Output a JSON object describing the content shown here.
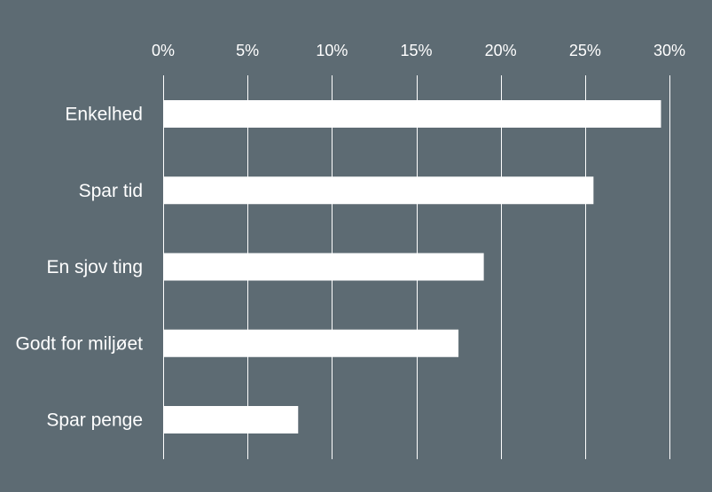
{
  "chart_data": {
    "type": "bar",
    "orientation": "horizontal",
    "categories": [
      "Enkelhed",
      "Spar tid",
      "En sjov ting",
      "Godt for miljøet",
      "Spar penge"
    ],
    "values": [
      29.5,
      25.5,
      19.0,
      17.5,
      8.0
    ],
    "unit": "%",
    "xlim": [
      0,
      30
    ],
    "x_ticks": [
      0,
      5,
      10,
      15,
      20,
      25,
      30
    ],
    "x_tick_labels": [
      "0%",
      "5%",
      "10%",
      "15%",
      "20%",
      "25%",
      "30%"
    ],
    "x_axis_position": "top",
    "grid": true,
    "legend": "none",
    "title": "",
    "xlabel": "",
    "ylabel": ""
  },
  "colors": {
    "background": "#5d6b73",
    "bar": "#ffffff",
    "gridline": "#ffffff",
    "text": "#ffffff"
  }
}
